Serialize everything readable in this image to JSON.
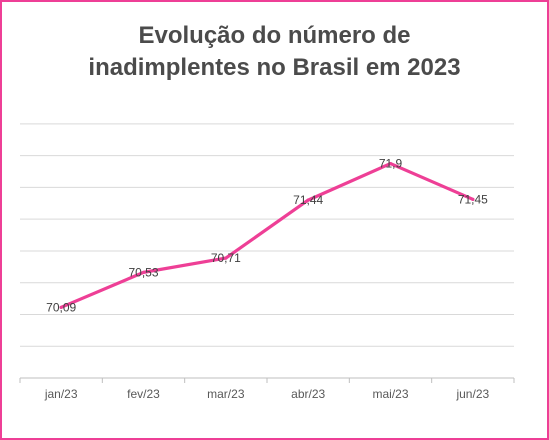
{
  "chart_data": {
    "type": "line",
    "title_lines": [
      "Evolução do número de",
      "inadimplentes no Brasil em 2023"
    ],
    "categories": [
      "jan/23",
      "fev/23",
      "mar/23",
      "abr/23",
      "mai/23",
      "jun/23"
    ],
    "values": [
      70.09,
      70.53,
      70.71,
      71.44,
      71.9,
      71.45
    ],
    "data_labels": [
      "70,09",
      "70,53",
      "70,71",
      "71,44",
      "71,9",
      "71,45"
    ],
    "ylim": [
      69.2,
      72.6
    ],
    "y_gridlines": [
      69.2,
      69.6,
      70.0,
      70.4,
      70.8,
      71.2,
      71.6,
      72.0,
      72.4
    ],
    "line_color": "#ee3f96",
    "grid": true,
    "y_tick_labels_shown": false
  }
}
